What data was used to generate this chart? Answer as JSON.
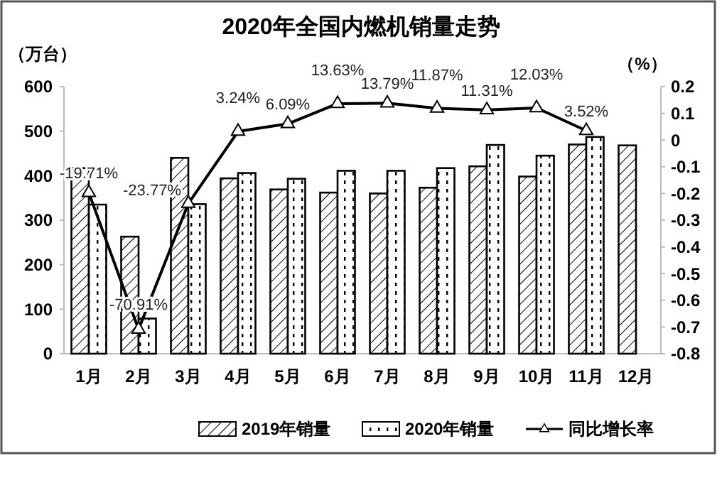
{
  "chart_data": {
    "type": "bar",
    "title": "2020年全国内燃机销量走势",
    "ylabel": "（万台）",
    "y2label": "（%）",
    "categories": [
      "1月",
      "2月",
      "3月",
      "4月",
      "5月",
      "6月",
      "7月",
      "8月",
      "9月",
      "10月",
      "11月",
      "12月"
    ],
    "series": [
      {
        "name": "2019年销量",
        "color": "#000000",
        "values": [
          417,
          263,
          440,
          394,
          369,
          362,
          360,
          373,
          421,
          398,
          470,
          468
        ]
      },
      {
        "name": "2020年销量",
        "color": "#000000",
        "values": [
          335,
          79,
          336,
          406,
          393,
          411,
          411,
          417,
          469,
          445,
          487,
          null
        ]
      },
      {
        "name": "同比增长率",
        "type": "line",
        "axis": "y2",
        "color": "#000000",
        "marker": "triangle",
        "values": [
          -0.1971,
          -0.7091,
          -0.2377,
          0.0324,
          0.0609,
          0.1363,
          0.1379,
          0.1187,
          0.1131,
          0.1203,
          0.0352,
          null
        ],
        "value_labels": [
          "-19.71%",
          "-70.91%",
          "-23.77%",
          "3.24%",
          "6.09%",
          "13.63%",
          "13.79%",
          "11.87%",
          "11.31%",
          "12.03%",
          "3.52%",
          null
        ]
      }
    ],
    "ylim": [
      0,
      600
    ],
    "yticks": [
      0,
      100,
      200,
      300,
      400,
      500,
      600
    ],
    "y2lim": [
      -0.8,
      0.2
    ],
    "y2ticks": [
      -0.8,
      -0.7,
      -0.6,
      -0.5,
      -0.4,
      -0.3,
      -0.2,
      -0.1,
      0,
      0.1,
      0.2
    ],
    "grid": false,
    "legend": "bottom"
  }
}
